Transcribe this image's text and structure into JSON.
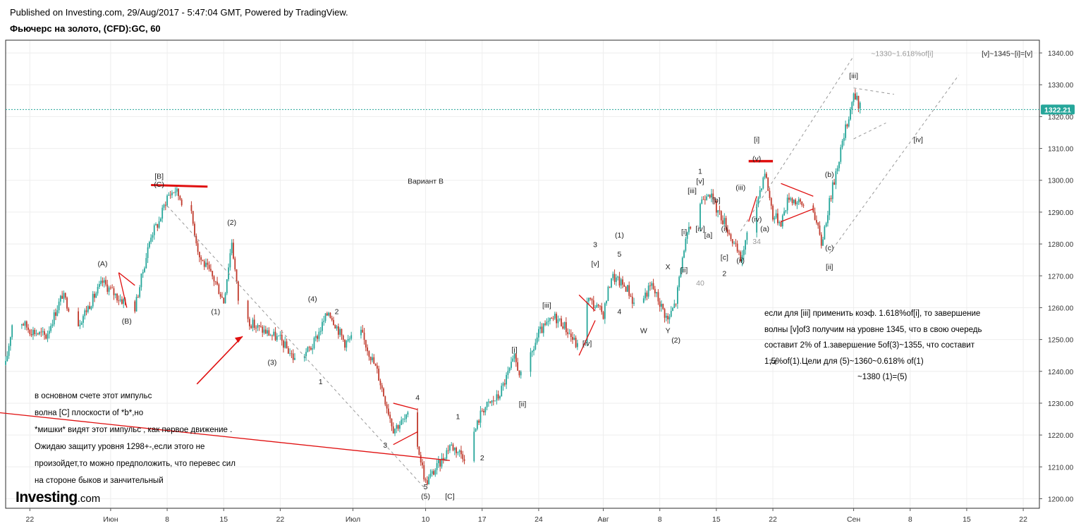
{
  "header": {
    "published": "Published on Investing.com, 29/Aug/2017 - 5:47:04 GMT, Powered by TradingView.",
    "title": "Фьючерс на золото, (CFD):GC, 60"
  },
  "logo": {
    "name": "Investing",
    "suffix": ".com"
  },
  "colors": {
    "up": "#26a69a",
    "down": "#c0392b",
    "annotation": "#e01010",
    "grid": "#eeeeee",
    "last_price_line": "#26a69a",
    "trendline": "#999999"
  },
  "chart_data": {
    "type": "candlestick",
    "timeframe": "60",
    "last_price": 1322.21,
    "last_price_label": "1322.21",
    "ylim": [
      1197,
      1344
    ],
    "y_ticks": [
      1200,
      1210,
      1220,
      1230,
      1240,
      1250,
      1260,
      1270,
      1280,
      1290,
      1300,
      1310,
      1320,
      1330,
      1340
    ],
    "y_tick_labels": [
      "1200.00",
      "1210.00",
      "1220.00",
      "1230.00",
      "1240.00",
      "1250.00",
      "1260.00",
      "1270.00",
      "1280.00",
      "1290.00",
      "1300.00",
      "1310.00",
      "1320.00",
      "1330.00",
      "1340.00"
    ],
    "x_range": [
      "2017-05-19",
      "2017-09-24"
    ],
    "x_ticks": [
      {
        "date": "2017-05-22",
        "label": "22"
      },
      {
        "date": "2017-06-01",
        "label": "Июн"
      },
      {
        "date": "2017-06-08",
        "label": "8"
      },
      {
        "date": "2017-06-15",
        "label": "15"
      },
      {
        "date": "2017-06-22",
        "label": "22"
      },
      {
        "date": "2017-07-01",
        "label": "Июл"
      },
      {
        "date": "2017-07-10",
        "label": "10"
      },
      {
        "date": "2017-07-17",
        "label": "17"
      },
      {
        "date": "2017-07-24",
        "label": "24"
      },
      {
        "date": "2017-08-01",
        "label": "Авг"
      },
      {
        "date": "2017-08-08",
        "label": "8"
      },
      {
        "date": "2017-08-15",
        "label": "15"
      },
      {
        "date": "2017-08-22",
        "label": "22"
      },
      {
        "date": "2017-09-01",
        "label": "Сен"
      },
      {
        "date": "2017-09-08",
        "label": "8"
      },
      {
        "date": "2017-09-15",
        "label": "15"
      },
      {
        "date": "2017-09-22",
        "label": "22"
      }
    ],
    "price_path": [
      [
        "2017-05-19",
        1242
      ],
      [
        "2017-05-20",
        1258
      ],
      [
        "2017-05-22",
        1253
      ],
      [
        "2017-05-24",
        1251
      ],
      [
        "2017-05-26",
        1264
      ],
      [
        "2017-05-28",
        1255
      ],
      [
        "2017-05-31",
        1268
      ],
      [
        "2017-06-02",
        1263
      ],
      [
        "2017-06-04",
        1260
      ],
      [
        "2017-06-06",
        1283
      ],
      [
        "2017-06-07",
        1287
      ],
      [
        "2017-06-08",
        1295
      ],
      [
        "2017-06-09",
        1297
      ],
      [
        "2017-06-11",
        1289
      ],
      [
        "2017-06-12",
        1276
      ],
      [
        "2017-06-14",
        1268
      ],
      [
        "2017-06-15",
        1262
      ],
      [
        "2017-06-16",
        1281
      ],
      [
        "2017-06-17",
        1258
      ],
      [
        "2017-06-19",
        1254
      ],
      [
        "2017-06-22",
        1250
      ],
      [
        "2017-06-24",
        1243
      ],
      [
        "2017-06-26",
        1248
      ],
      [
        "2017-06-28",
        1259
      ],
      [
        "2017-06-30",
        1249
      ],
      [
        "2017-07-02",
        1252
      ],
      [
        "2017-07-04",
        1240
      ],
      [
        "2017-07-06",
        1222
      ],
      [
        "2017-07-08",
        1226
      ],
      [
        "2017-07-09",
        1217
      ],
      [
        "2017-07-10",
        1205
      ],
      [
        "2017-07-12",
        1212
      ],
      [
        "2017-07-13",
        1217
      ],
      [
        "2017-07-15",
        1213
      ],
      [
        "2017-07-17",
        1228
      ],
      [
        "2017-07-19",
        1232
      ],
      [
        "2017-07-21",
        1244
      ],
      [
        "2017-07-22",
        1237
      ],
      [
        "2017-07-24",
        1252
      ],
      [
        "2017-07-26",
        1257
      ],
      [
        "2017-07-27",
        1255
      ],
      [
        "2017-07-29",
        1247
      ],
      [
        "2017-07-30",
        1263
      ],
      [
        "2017-08-01",
        1258
      ],
      [
        "2017-08-02",
        1270
      ],
      [
        "2017-08-04",
        1266
      ],
      [
        "2017-08-05",
        1260
      ],
      [
        "2017-08-07",
        1267
      ],
      [
        "2017-08-09",
        1256
      ],
      [
        "2017-08-10",
        1262
      ],
      [
        "2017-08-11",
        1279
      ],
      [
        "2017-08-12",
        1287
      ],
      [
        "2017-08-13",
        1293
      ],
      [
        "2017-08-14",
        1297
      ],
      [
        "2017-08-15",
        1291
      ],
      [
        "2017-08-16",
        1287
      ],
      [
        "2017-08-17",
        1281
      ],
      [
        "2017-08-18",
        1275
      ],
      [
        "2017-08-19",
        1284
      ],
      [
        "2017-08-20",
        1293
      ],
      [
        "2017-08-21",
        1303
      ],
      [
        "2017-08-22",
        1289
      ],
      [
        "2017-08-23",
        1287
      ],
      [
        "2017-08-24",
        1295
      ],
      [
        "2017-08-25",
        1293
      ],
      [
        "2017-08-27",
        1291
      ],
      [
        "2017-08-28",
        1280
      ],
      [
        "2017-08-29",
        1293
      ],
      [
        "2017-08-30",
        1305
      ],
      [
        "2017-08-31",
        1316
      ],
      [
        "2017-09-01",
        1327
      ],
      [
        "2017-09-02",
        1322
      ]
    ]
  },
  "annotations": {
    "labels": [
      {
        "text": "[B]",
        "date": "2017-06-07",
        "price": 1300.5
      },
      {
        "text": "(C)",
        "date": "2017-06-07",
        "price": 1298
      },
      {
        "text": "(A)",
        "date": "2017-05-31",
        "price": 1273
      },
      {
        "text": "(B)",
        "date": "2017-06-03",
        "price": 1255
      },
      {
        "text": "(2)",
        "date": "2017-06-16",
        "price": 1286
      },
      {
        "text": "(1)",
        "date": "2017-06-14",
        "price": 1258
      },
      {
        "text": "(4)",
        "date": "2017-06-26",
        "price": 1262
      },
      {
        "text": "2",
        "date": "2017-06-29",
        "price": 1258
      },
      {
        "text": "(3)",
        "date": "2017-06-21",
        "price": 1242
      },
      {
        "text": "1",
        "date": "2017-06-27",
        "price": 1236
      },
      {
        "text": "4",
        "date": "2017-07-09",
        "price": 1231
      },
      {
        "text": "3",
        "date": "2017-07-05",
        "price": 1216
      },
      {
        "text": "5",
        "date": "2017-07-10",
        "price": 1203
      },
      {
        "text": "(5)",
        "date": "2017-07-10",
        "price": 1200
      },
      {
        "text": "[C]",
        "date": "2017-07-13",
        "price": 1200
      },
      {
        "text": "1",
        "date": "2017-07-14",
        "price": 1225
      },
      {
        "text": "2",
        "date": "2017-07-17",
        "price": 1212
      },
      {
        "text": "[i]",
        "date": "2017-07-21",
        "price": 1246
      },
      {
        "text": "[ii]",
        "date": "2017-07-22",
        "price": 1229
      },
      {
        "text": "[iii]",
        "date": "2017-07-25",
        "price": 1260
      },
      {
        "text": "[iv]",
        "date": "2017-07-30",
        "price": 1248
      },
      {
        "text": "3",
        "date": "2017-07-31",
        "price": 1279
      },
      {
        "text": "[v]",
        "date": "2017-07-31",
        "price": 1273
      },
      {
        "text": "(1)",
        "date": "2017-08-03",
        "price": 1282
      },
      {
        "text": "5",
        "date": "2017-08-03",
        "price": 1276
      },
      {
        "text": "4",
        "date": "2017-08-03",
        "price": 1258
      },
      {
        "text": "W",
        "date": "2017-08-06",
        "price": 1252
      },
      {
        "text": "X",
        "date": "2017-08-09",
        "price": 1272
      },
      {
        "text": "Y",
        "date": "2017-08-09",
        "price": 1252
      },
      {
        "text": "(2)",
        "date": "2017-08-10",
        "price": 1249
      },
      {
        "text": "[i]",
        "date": "2017-08-11",
        "price": 1283
      },
      {
        "text": "[ii]",
        "date": "2017-08-11",
        "price": 1271
      },
      {
        "text": "[iii]",
        "date": "2017-08-12",
        "price": 1296
      },
      {
        "text": "1",
        "date": "2017-08-13",
        "price": 1302
      },
      {
        "text": "[v]",
        "date": "2017-08-13",
        "price": 1299
      },
      {
        "text": "[iv]",
        "date": "2017-08-13",
        "price": 1284
      },
      {
        "text": "[b]",
        "date": "2017-08-15",
        "price": 1293
      },
      {
        "text": "[a]",
        "date": "2017-08-14",
        "price": 1282
      },
      {
        "text": "(i)",
        "date": "2017-08-16",
        "price": 1284
      },
      {
        "text": "[c]",
        "date": "2017-08-16",
        "price": 1275
      },
      {
        "text": "2",
        "date": "2017-08-16",
        "price": 1270
      },
      {
        "text": "(iii)",
        "date": "2017-08-18",
        "price": 1297
      },
      {
        "text": "(ii)",
        "date": "2017-08-18",
        "price": 1274
      },
      {
        "text": "[i]",
        "date": "2017-08-20",
        "price": 1312
      },
      {
        "text": "(v)",
        "date": "2017-08-20",
        "price": 1306
      },
      {
        "text": "(iv)",
        "date": "2017-08-20",
        "price": 1287
      },
      {
        "text": "(a)",
        "date": "2017-08-21",
        "price": 1284
      },
      {
        "text": "(b)",
        "date": "2017-08-29",
        "price": 1301
      },
      {
        "text": "(c)",
        "date": "2017-08-29",
        "price": 1278
      },
      {
        "text": "[ii]",
        "date": "2017-08-29",
        "price": 1272
      },
      {
        "text": "[iii]",
        "date": "2017-09-01",
        "price": 1332
      },
      {
        "text": "[iv]",
        "date": "2017-09-09",
        "price": 1312
      },
      {
        "text": "Вариант B",
        "date": "2017-07-10",
        "price": 1299
      },
      {
        "text": "~1330~1.618%of[i]",
        "date": "2017-09-07",
        "price": 1339
      },
      {
        "text": "[v]~1345~[i]=[v]",
        "date": "2017-09-20",
        "price": 1339
      }
    ],
    "faint_numbers": [
      {
        "text": "40",
        "date": "2017-08-13",
        "price": 1267
      },
      {
        "text": "34",
        "date": "2017-08-20",
        "price": 1280
      },
      {
        "text": "74",
        "date": "2017-08-22",
        "price": 1242
      }
    ],
    "comment_left": [
      "в основном счете этот импульс",
      "волна [C] плоскости of *b*,но",
      "*мишки* видят этот импульс , как первое движение .",
      "Ожидаю защиту уровня 1298+-,если этого не",
      "произойдет,то можно предположить, что перевес сил",
      "на стороне быков и занчительный"
    ],
    "comment_right": [
      "если для [iii] применить коэф. 1.618%of[i], то завершение",
      "волны [v]of3 получим на уровне 1345, что в свою очередь",
      " составит 2% of 1.завершение 5of(3)~1355, что составит",
      "1.5%of(1).Цели для (5)~1360~0.618% of(1)",
      "~1380 (1)=(5)"
    ]
  }
}
